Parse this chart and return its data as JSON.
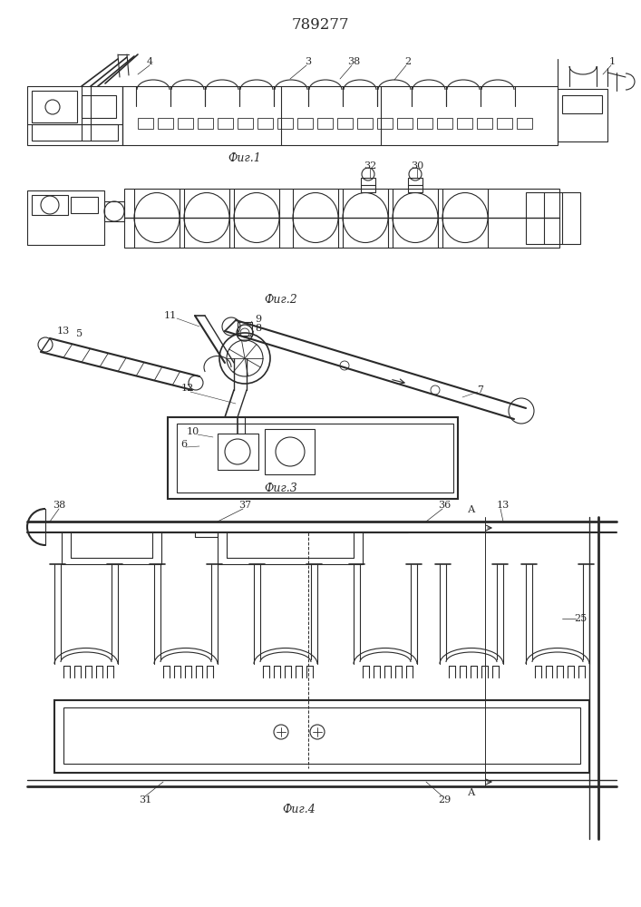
{
  "title": "789277",
  "fig1_label": "Фиг.1",
  "fig2_label": "Фиг.2",
  "fig3_label": "Фиг.3",
  "fig4_label": "Фиг.4",
  "bg_color": "#ffffff",
  "lc": "#2a2a2a",
  "lw": 0.8
}
